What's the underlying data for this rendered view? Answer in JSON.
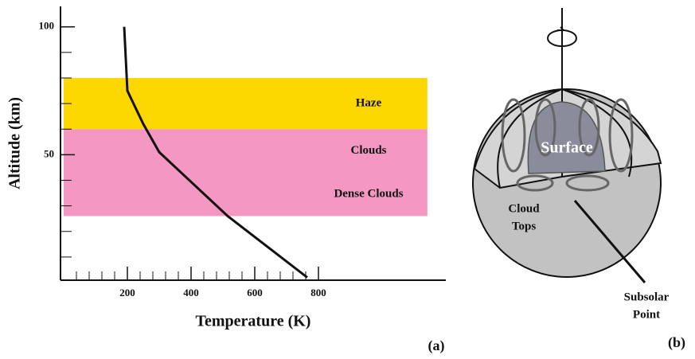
{
  "chart_data": {
    "type": "line",
    "panel_label": "(a)",
    "x_label": "Temperature (K)",
    "y_label": "Altitude (km)",
    "xlim": [
      0,
      1200
    ],
    "ylim": [
      0,
      108
    ],
    "xticks": [
      200,
      400,
      600,
      800
    ],
    "yticks": [
      50,
      100
    ],
    "xminorticks": [
      40,
      80,
      120,
      160,
      240,
      280,
      320,
      360,
      440,
      480,
      520,
      560,
      640,
      680,
      720,
      760
    ],
    "yminorticks": [
      10,
      20,
      30,
      40,
      60,
      70,
      80,
      90
    ],
    "bands": [
      {
        "labels": [
          "Haze"
        ],
        "from": 60,
        "to": 80,
        "color": "#fcd700"
      },
      {
        "labels": [
          "Clouds",
          "Dense Clouds"
        ],
        "from": 26,
        "to": 60,
        "color": "#f497c3"
      }
    ],
    "series": [
      {
        "color": "#111111",
        "x": [
          190,
          200,
          250,
          300,
          515,
          765
        ],
        "values": [
          100,
          75,
          62,
          51,
          26,
          2
        ]
      }
    ]
  },
  "diagram": {
    "panel_label": "(b)",
    "surface_label": "Surface",
    "cloud_tops_label": [
      "Cloud",
      "Tops"
    ],
    "subsolar_label": [
      "Subsolar",
      "Point"
    ]
  }
}
